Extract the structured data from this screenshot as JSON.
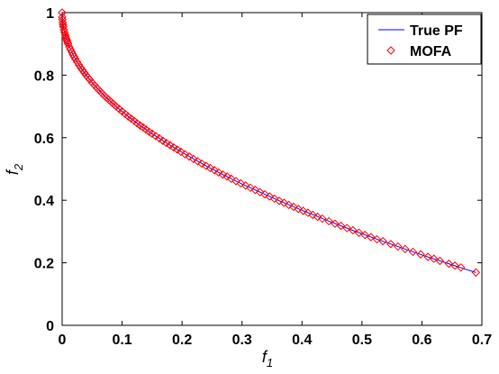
{
  "chart_data": {
    "type": "scatter",
    "xlabel": "f",
    "xlabel_sub": "1",
    "ylabel": "f",
    "ylabel_sub": "2",
    "xlim": [
      0,
      0.7
    ],
    "ylim": [
      0,
      1
    ],
    "xticks": [
      0,
      0.1,
      0.2,
      0.3,
      0.4,
      0.5,
      0.6,
      0.7
    ],
    "xtick_labels": [
      "0",
      "0.1",
      "0.2",
      "0.3",
      "0.4",
      "0.5",
      "0.6",
      "0.7"
    ],
    "yticks": [
      0,
      0.2,
      0.4,
      0.6,
      0.8,
      1
    ],
    "ytick_labels": [
      "0",
      "0.2",
      "0.4",
      "0.6",
      "0.8",
      "1"
    ],
    "grid": false,
    "legend_position": "top-right",
    "series": [
      {
        "name": "True PF",
        "kind": "line",
        "color": "#0000ff",
        "curve": "f2 = 1 - sqrt(f1)",
        "x": [
          0,
          0.0005,
          0.001,
          0.002,
          0.004,
          0.007,
          0.01,
          0.015,
          0.02,
          0.03,
          0.04,
          0.05,
          0.07,
          0.09,
          0.11,
          0.13,
          0.15,
          0.18,
          0.21,
          0.24,
          0.27,
          0.3,
          0.33,
          0.36,
          0.4,
          0.44,
          0.48,
          0.52,
          0.56,
          0.6,
          0.64,
          0.67,
          0.69
        ],
        "y": [
          1,
          0.978,
          0.968,
          0.955,
          0.937,
          0.916,
          0.9,
          0.878,
          0.859,
          0.827,
          0.8,
          0.776,
          0.735,
          0.7,
          0.668,
          0.639,
          0.613,
          0.576,
          0.542,
          0.51,
          0.48,
          0.452,
          0.426,
          0.4,
          0.368,
          0.337,
          0.307,
          0.279,
          0.252,
          0.225,
          0.2,
          0.181,
          0.169
        ]
      },
      {
        "name": "MOFA",
        "kind": "scatter",
        "marker": "diamond",
        "color": "#ff0000",
        "x": [
          0.0,
          0.0002,
          0.0005,
          0.001,
          0.0015,
          0.002,
          0.003,
          0.004,
          0.005,
          0.006,
          0.007,
          0.008,
          0.009,
          0.01,
          0.012,
          0.014,
          0.016,
          0.018,
          0.02,
          0.022,
          0.025,
          0.028,
          0.031,
          0.034,
          0.037,
          0.04,
          0.043,
          0.046,
          0.05,
          0.054,
          0.058,
          0.062,
          0.066,
          0.07,
          0.074,
          0.078,
          0.082,
          0.086,
          0.09,
          0.095,
          0.1,
          0.105,
          0.11,
          0.115,
          0.12,
          0.125,
          0.13,
          0.135,
          0.14,
          0.145,
          0.15,
          0.156,
          0.162,
          0.168,
          0.174,
          0.18,
          0.186,
          0.192,
          0.198,
          0.205,
          0.212,
          0.219,
          0.226,
          0.233,
          0.24,
          0.247,
          0.254,
          0.261,
          0.268,
          0.275,
          0.282,
          0.29,
          0.298,
          0.306,
          0.314,
          0.322,
          0.33,
          0.338,
          0.346,
          0.354,
          0.362,
          0.37,
          0.378,
          0.386,
          0.394,
          0.402,
          0.41,
          0.418,
          0.426,
          0.434,
          0.445,
          0.455,
          0.465,
          0.475,
          0.485,
          0.495,
          0.505,
          0.515,
          0.525,
          0.535,
          0.548,
          0.56,
          0.572,
          0.585,
          0.598,
          0.61,
          0.62,
          0.63,
          0.645,
          0.655,
          0.665,
          0.69
        ],
        "y": [
          1.0,
          0.986,
          0.978,
          0.968,
          0.961,
          0.955,
          0.945,
          0.937,
          0.929,
          0.923,
          0.916,
          0.911,
          0.905,
          0.9,
          0.89,
          0.882,
          0.874,
          0.866,
          0.859,
          0.852,
          0.842,
          0.833,
          0.824,
          0.816,
          0.808,
          0.8,
          0.793,
          0.786,
          0.776,
          0.768,
          0.759,
          0.751,
          0.743,
          0.735,
          0.728,
          0.721,
          0.714,
          0.707,
          0.7,
          0.692,
          0.684,
          0.676,
          0.668,
          0.661,
          0.654,
          0.646,
          0.639,
          0.633,
          0.626,
          0.619,
          0.613,
          0.605,
          0.598,
          0.59,
          0.583,
          0.576,
          0.569,
          0.562,
          0.555,
          0.547,
          0.54,
          0.532,
          0.525,
          0.517,
          0.51,
          0.503,
          0.496,
          0.489,
          0.482,
          0.476,
          0.469,
          0.461,
          0.454,
          0.447,
          0.44,
          0.433,
          0.426,
          0.419,
          0.412,
          0.405,
          0.398,
          0.392,
          0.385,
          0.379,
          0.372,
          0.366,
          0.36,
          0.353,
          0.347,
          0.341,
          0.333,
          0.325,
          0.318,
          0.311,
          0.304,
          0.296,
          0.289,
          0.282,
          0.275,
          0.269,
          0.26,
          0.252,
          0.244,
          0.235,
          0.227,
          0.219,
          0.213,
          0.206,
          0.197,
          0.191,
          0.185,
          0.169
        ]
      }
    ]
  }
}
